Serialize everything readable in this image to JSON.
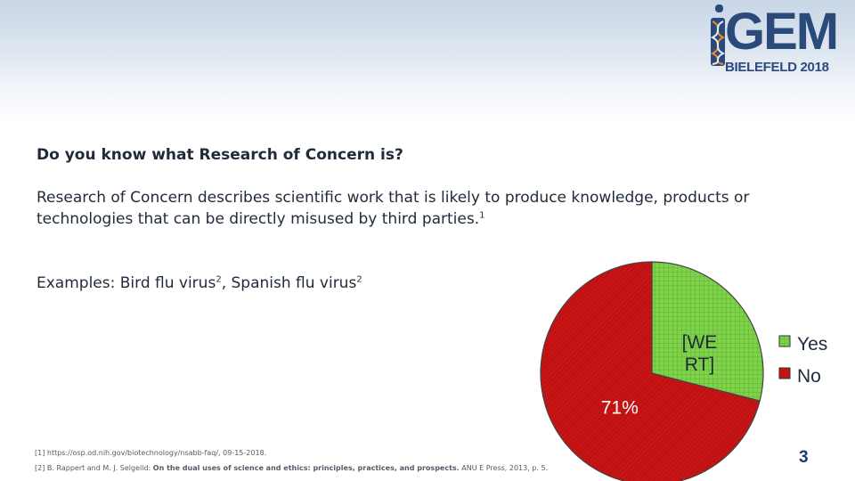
{
  "header": {
    "logo_text": "iGEM",
    "logo_subtitle": "BIELEFELD 2018"
  },
  "content": {
    "question": "Do you know what Research of Concern is?",
    "definition": "Research of Concern describes scientific work that is likely to produce knowledge, products or technologies that can be directly misused by third parties.",
    "definition_ref": "1",
    "examples_prefix": "Examples: Bird flu virus",
    "examples_ref1": "2",
    "examples_mid": ", Spanish flu virus",
    "examples_ref2": "2"
  },
  "references": {
    "ref1_prefix": "[1] https://osp.od.nih.gov/biotechnology/nsabb-faq/, 09-15-2018.",
    "ref2_prefix": "[2] B. Rappert and M. J. Selgelid:",
    "ref2_title": "On the dual uses of science and ethics: principles, practices, and prospects.",
    "ref2_suffix": "ANU E Press, 2013, p. 5."
  },
  "slide_number": "3",
  "colors": {
    "yes": "#7fd34a",
    "no": "#c81414",
    "text": "#1f2a3a",
    "accent": "#2b4a7c"
  },
  "chart_data": {
    "type": "pie",
    "categories": [
      "Yes",
      "No"
    ],
    "values": [
      29,
      71
    ],
    "data_labels": [
      "[WERT]",
      "71%"
    ],
    "legend": [
      "Yes",
      "No"
    ],
    "legend_position": "right"
  }
}
